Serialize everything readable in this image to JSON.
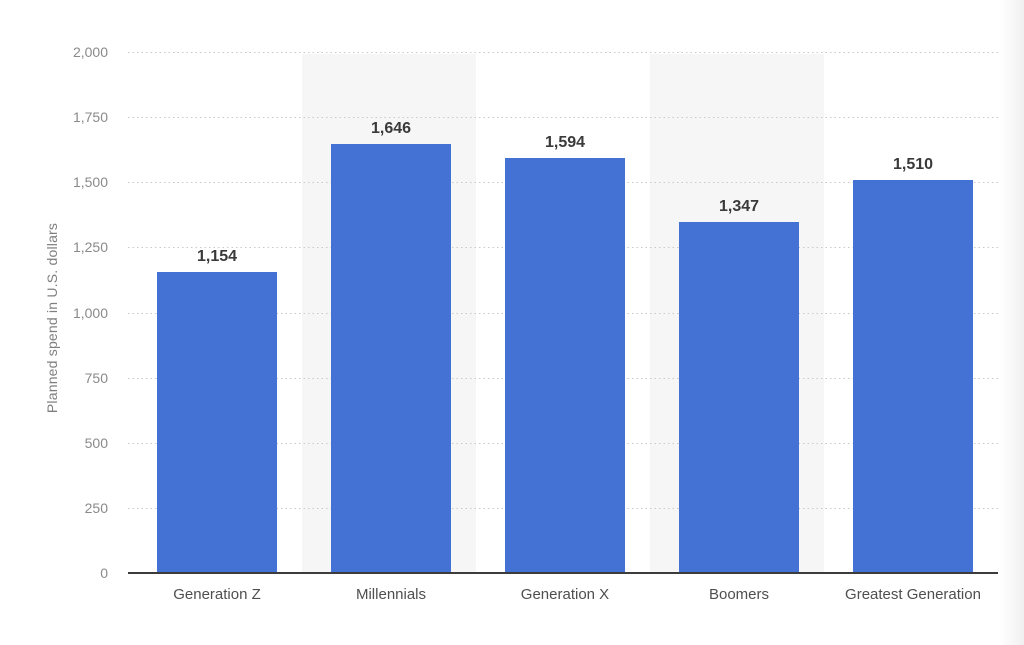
{
  "chart_data": {
    "type": "bar",
    "categories": [
      "Generation Z",
      "Millennials",
      "Generation X",
      "Boomers",
      "Greatest Generation"
    ],
    "values": [
      1154,
      1646,
      1594,
      1347,
      1510
    ],
    "value_labels": [
      "1,154",
      "1,646",
      "1,594",
      "1,347",
      "1,510"
    ],
    "title": "",
    "xlabel": "",
    "ylabel": "Planned spend in U.S. dollars",
    "ylim": [
      0,
      2000
    ],
    "ytick_step": 250,
    "yticks": [
      0,
      250,
      500,
      750,
      1000,
      1250,
      1500,
      1750,
      2000
    ],
    "ytick_labels": [
      "0",
      "250",
      "500",
      "750",
      "1,000",
      "1,250",
      "1,500",
      "1,750",
      "2,000"
    ],
    "grid": "horizontal-dotted",
    "legend": "none",
    "band_columns": [
      1,
      3
    ],
    "colors": {
      "bar": "#4472d4",
      "column_band": "#f6f6f6",
      "gridline": "#c9c9c9",
      "axis_line": "#3c3c3c",
      "value_label": "#3a3a3a",
      "x_label": "#4f4f4f",
      "y_tick": "#8a8a8a",
      "y_title": "#7f7f7f",
      "background": "#ffffff"
    }
  }
}
